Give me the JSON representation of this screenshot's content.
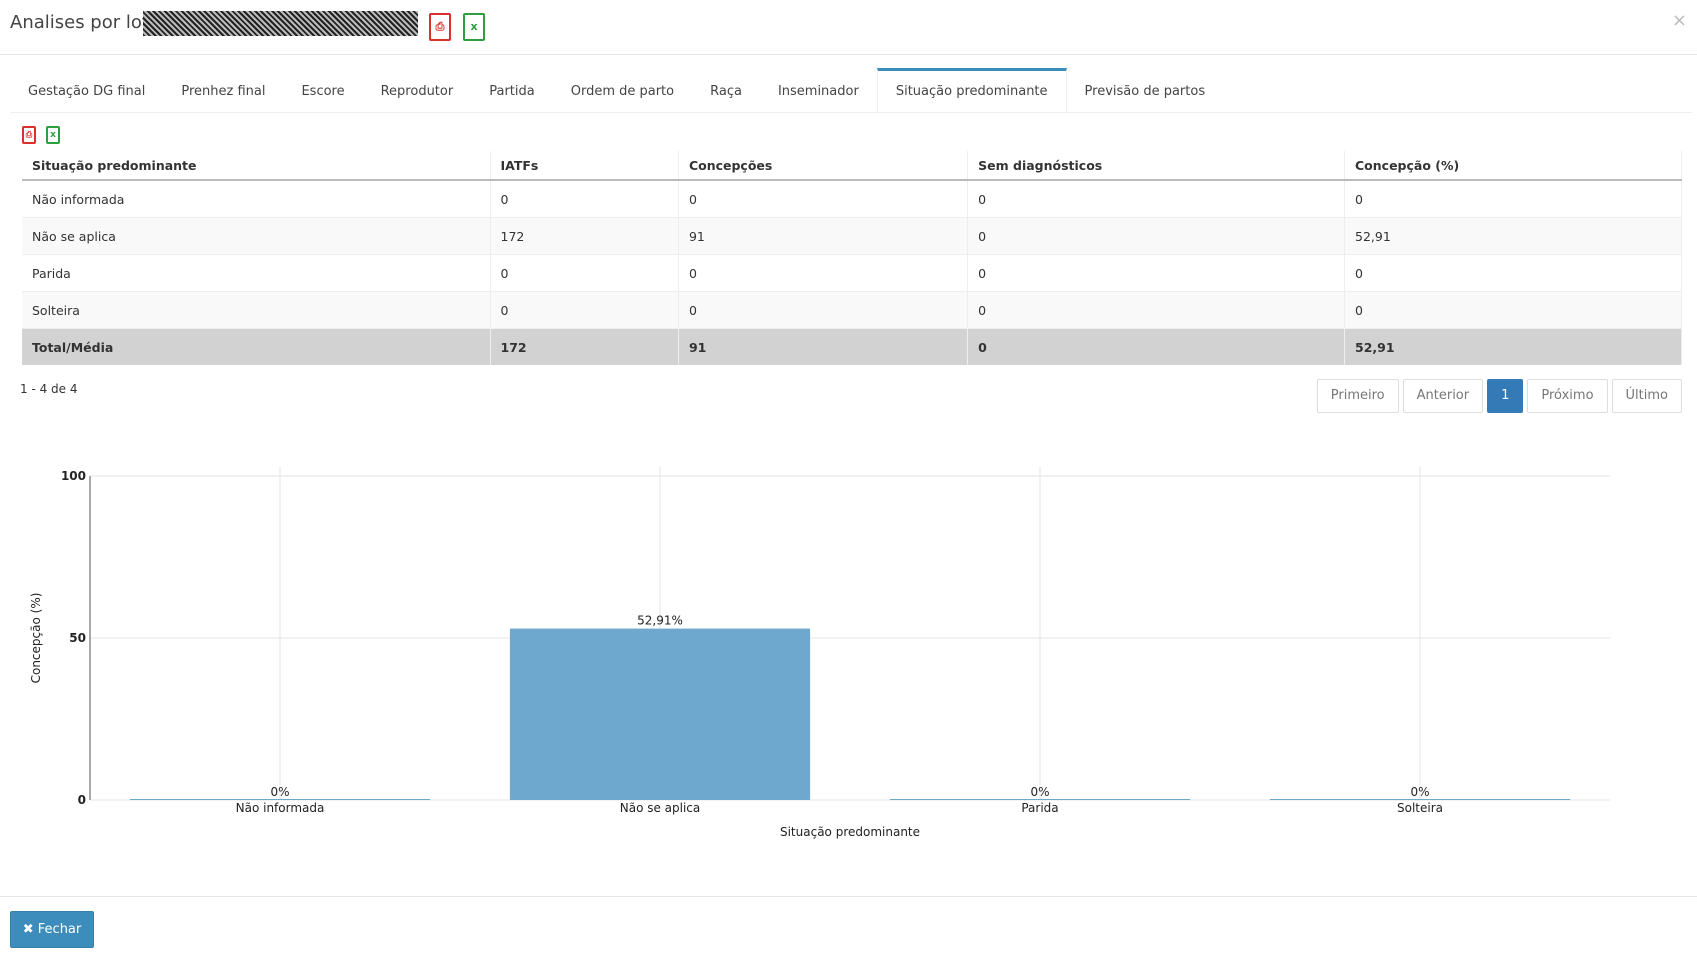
{
  "header": {
    "title": "Analises por lotes"
  },
  "tabs": {
    "items": [
      "Gestação DG final",
      "Prenhez final",
      "Escore",
      "Reprodutor",
      "Partida",
      "Ordem de parto",
      "Raça",
      "Inseminador",
      "Situação predominante",
      "Previsão de partos"
    ],
    "active": 8
  },
  "table": {
    "columns": [
      "Situação predominante",
      "IATFs",
      "Concepções",
      "Sem diagnósticos",
      "Concepção (%)"
    ],
    "rows": [
      [
        "Não informada",
        "0",
        "0",
        "0",
        "0"
      ],
      [
        "Não se aplica",
        "172",
        "91",
        "0",
        "52,91"
      ],
      [
        "Parida",
        "0",
        "0",
        "0",
        "0"
      ],
      [
        "Solteira",
        "0",
        "0",
        "0",
        "0"
      ]
    ],
    "total": [
      "Total/Média",
      "172",
      "91",
      "0",
      "52,91"
    ]
  },
  "pagination": {
    "info": "1 - 4 de 4",
    "buttons": [
      "Primeiro",
      "Anterior",
      "1",
      "Próximo",
      "Último"
    ],
    "active": 2
  },
  "chart_data": {
    "type": "bar",
    "categories": [
      "Não informada",
      "Não se aplica",
      "Parida",
      "Solteira"
    ],
    "values": [
      0,
      52.91,
      0,
      0
    ],
    "value_labels": [
      "0%",
      "52,91%",
      "0%",
      "0%"
    ],
    "color": "#6fa8cf",
    "ylim": [
      0,
      100
    ],
    "yticks": [
      0,
      50,
      100
    ],
    "grid": true,
    "xlabel": "Situação predominante",
    "ylabel": "Concepção (%)"
  },
  "footer": {
    "button": "Fechar"
  }
}
